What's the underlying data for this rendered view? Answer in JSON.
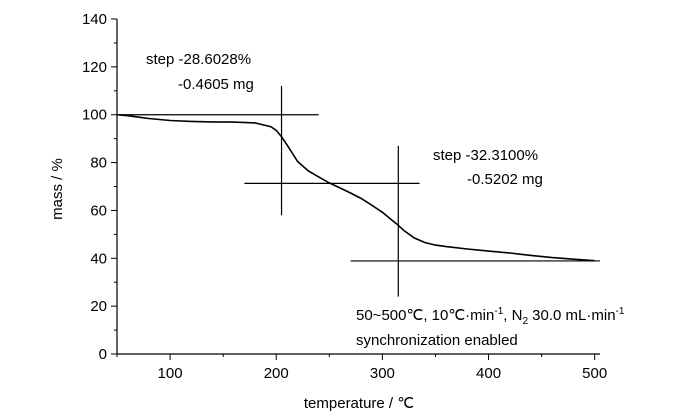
{
  "chart_data": {
    "type": "line",
    "xlabel": "temperature / ℃",
    "ylabel": "mass / %",
    "xlim": [
      50,
      505
    ],
    "ylim": [
      0,
      140
    ],
    "x_ticks": [
      100,
      200,
      300,
      400,
      500
    ],
    "y_ticks": [
      0,
      20,
      40,
      60,
      80,
      100,
      120,
      140
    ],
    "grid": false,
    "series": [
      {
        "x": [
          50,
          60,
          70,
          80,
          90,
          100,
          120,
          140,
          160,
          180,
          195,
          200,
          205,
          210,
          215,
          220,
          230,
          240,
          250,
          260,
          270,
          280,
          290,
          300,
          310,
          315,
          320,
          330,
          340,
          350,
          360,
          380,
          400,
          420,
          440,
          460,
          480,
          500
        ],
        "y": [
          100,
          99.6,
          99.0,
          98.4,
          98.0,
          97.6,
          97.2,
          97.0,
          96.9,
          96.6,
          95.0,
          93.5,
          90.8,
          87.5,
          84.0,
          80.5,
          76.6,
          74.0,
          71.5,
          69.4,
          67.3,
          65.0,
          62.2,
          59.2,
          55.6,
          53.8,
          51.7,
          48.5,
          46.6,
          45.5,
          44.9,
          43.9,
          43.0,
          42.2,
          41.2,
          40.3,
          39.6,
          39.0
        ]
      }
    ],
    "tangent_lines": [
      {
        "x": [
          50,
          240
        ],
        "y": [
          100,
          100
        ]
      },
      {
        "x": [
          170,
          335
        ],
        "y": [
          71.3,
          71.3
        ]
      },
      {
        "x": [
          270,
          505
        ],
        "y": [
          38.9,
          38.9
        ]
      },
      {
        "x": [
          205,
          205
        ],
        "y": [
          58,
          112
        ]
      },
      {
        "x": [
          315,
          315
        ],
        "y": [
          24,
          87
        ]
      }
    ],
    "annotations": {
      "step1_line1": "step -28.6028%",
      "step1_line2": "-0.4605 mg",
      "step2_line1": "step -32.3100%",
      "step2_line2": "-0.5202 mg",
      "cond_a": "50~500℃, 10℃·min",
      "cond_sup1": "-1",
      "cond_b": ", N",
      "cond_sub": "2",
      "cond_c": " 30.0 mL·min",
      "cond_sup2": "-1",
      "cond_line2": "synchronization enabled"
    }
  }
}
